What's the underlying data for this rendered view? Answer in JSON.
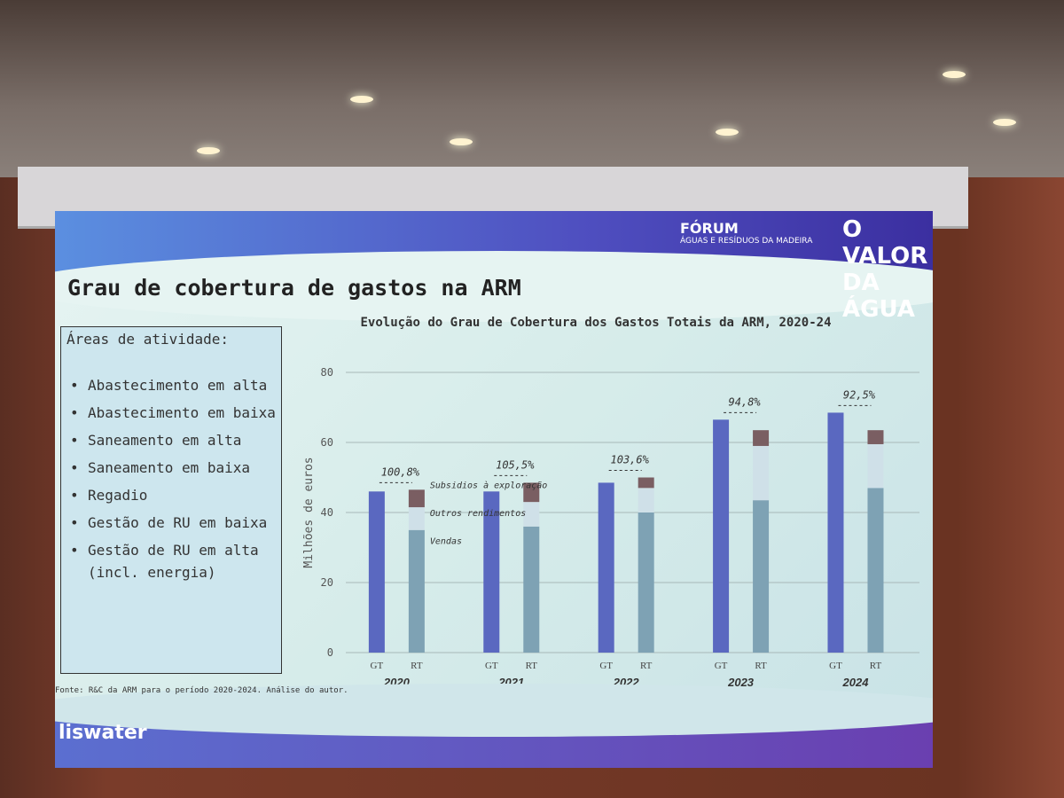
{
  "header": {
    "forum_title": "FÓRUM",
    "forum_subtitle": "ÁGUAS E RESÍDUOS DA MADEIRA",
    "event_line1": "O VALOR",
    "event_line2": "DA ÁGUA"
  },
  "slide": {
    "title": "Grau de cobertura de gastos na ARM",
    "source": "Fonte: R&C da ARM para o período 2020-2024. Análise do autor.",
    "logo": "liswater"
  },
  "areas": {
    "heading": "Áreas de atividade:",
    "items": [
      "Abastecimento em alta",
      "Abastecimento em baixa",
      "Saneamento em alta",
      "Saneamento em baixa",
      "Regadio",
      "Gestão de RU em baixa",
      "Gestão de RU em alta (incl. energia)"
    ]
  },
  "chart_data": {
    "type": "bar",
    "title": "Evolução do Grau de Cobertura dos Gastos Totais da ARM, 2020-24",
    "ylabel": "Milhões de euros",
    "ylim": [
      0,
      80
    ],
    "yticks": [
      0,
      20,
      40,
      60,
      80
    ],
    "grid": true,
    "categories": [
      "2020",
      "2021",
      "2022",
      "2023",
      "2024"
    ],
    "bar_labels": [
      "GT",
      "RT"
    ],
    "GT": [
      46,
      46,
      48.5,
      66.5,
      68.5
    ],
    "RT_series": [
      {
        "name": "Vendas",
        "values": [
          35,
          36,
          40,
          43.5,
          47
        ],
        "color": "#7ea2b4"
      },
      {
        "name": "Outros rendimentos",
        "values": [
          6.5,
          7,
          7,
          15.5,
          12.5
        ],
        "color": "#cfe0e8"
      },
      {
        "name": "Subsidios à exploração",
        "values": [
          5,
          5.5,
          3,
          4.5,
          4
        ],
        "color": "#7a5e62"
      }
    ],
    "GT_color": "#5a68c0",
    "coverage_labels": [
      "100,8%",
      "105,5%",
      "103,6%",
      "94,8%",
      "92,5%"
    ]
  }
}
